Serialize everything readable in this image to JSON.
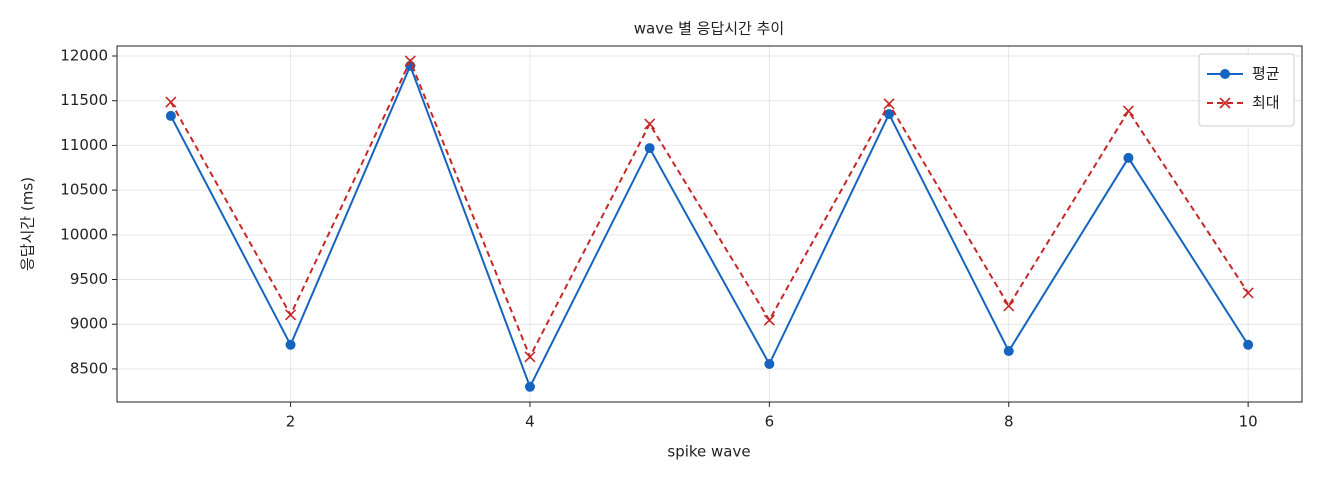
{
  "chart_data": {
    "type": "line",
    "title": "wave 별 응답시간 추이",
    "xlabel": "spike wave",
    "ylabel": "응답시간 (ms)",
    "x": [
      1,
      2,
      3,
      4,
      5,
      6,
      7,
      8,
      9,
      10
    ],
    "series": [
      {
        "name": "평균",
        "color": "#1565c0",
        "marker": "circle",
        "dash": false,
        "values": [
          11330,
          8770,
          11890,
          8300,
          10970,
          8555,
          11350,
          8700,
          10860,
          8770
        ]
      },
      {
        "name": "최대",
        "color": "#c62828",
        "marker": "x",
        "dash": true,
        "values": [
          11485,
          9105,
          11945,
          8635,
          11240,
          9045,
          11465,
          9205,
          11385,
          9350
        ]
      }
    ],
    "xlim": [
      0.55,
      10.45
    ],
    "xticks": [
      2,
      4,
      6,
      8,
      10
    ],
    "ylim": [
      8130,
      12112
    ],
    "yticks": [
      8500,
      9000,
      9500,
      10000,
      10500,
      11000,
      11500,
      12000
    ],
    "grid": true,
    "legend": "upper-right"
  }
}
